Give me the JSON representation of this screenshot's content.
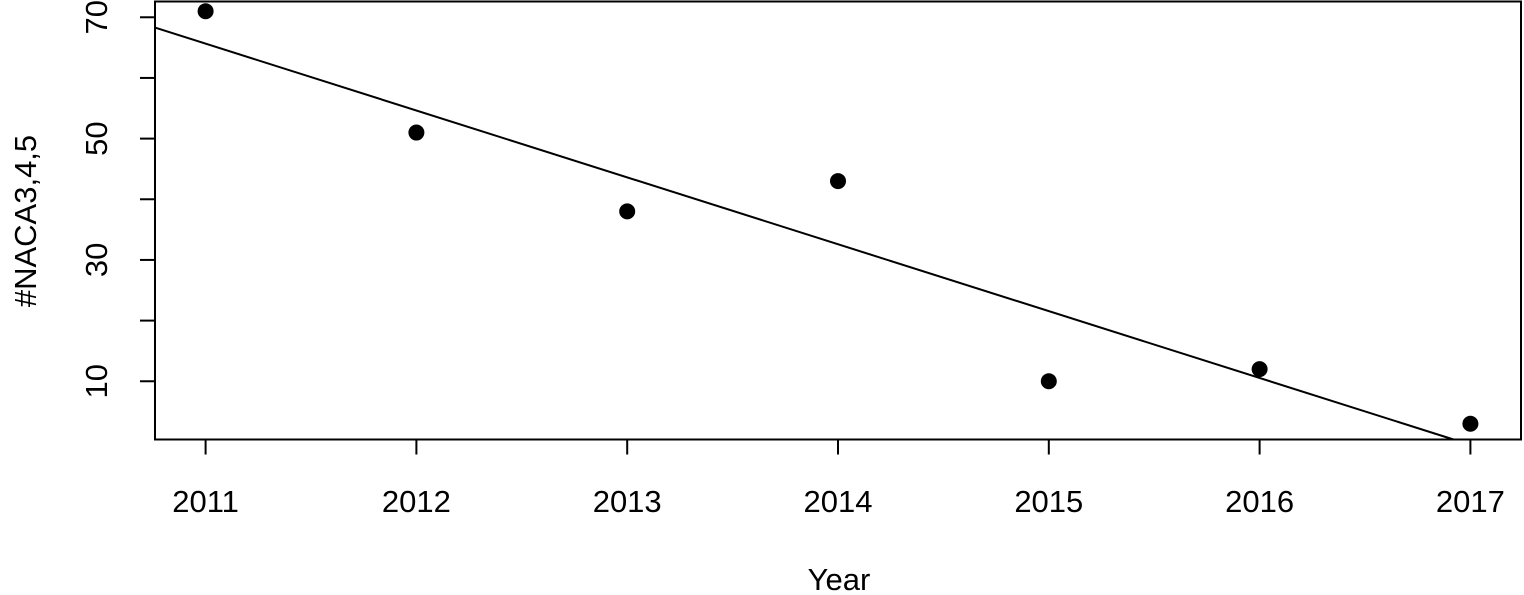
{
  "chart_data": {
    "type": "scatter",
    "title": "",
    "xlabel": "Year",
    "ylabel": "#NACA3,4,5",
    "x": [
      2011,
      2012,
      2013,
      2014,
      2015,
      2016,
      2017
    ],
    "y": [
      71,
      51,
      38,
      43,
      10,
      12,
      3
    ],
    "xlim": [
      2010.76,
      2017.24
    ],
    "ylim": [
      0.4,
      72.6
    ],
    "x_ticks": [
      2011,
      2012,
      2013,
      2014,
      2015,
      2016,
      2017
    ],
    "y_ticks": [
      0,
      10,
      20,
      30,
      40,
      50,
      60,
      70
    ],
    "y_tick_labels": [
      "10",
      "30",
      "50",
      "70"
    ],
    "grid": false,
    "legend": "none",
    "trend_line": {
      "x": [
        2010.76,
        2016.92
      ],
      "y": [
        68.3,
        0.4
      ]
    },
    "colors": {
      "points": "#000000",
      "line": "#000000",
      "axes": "#000000"
    }
  }
}
